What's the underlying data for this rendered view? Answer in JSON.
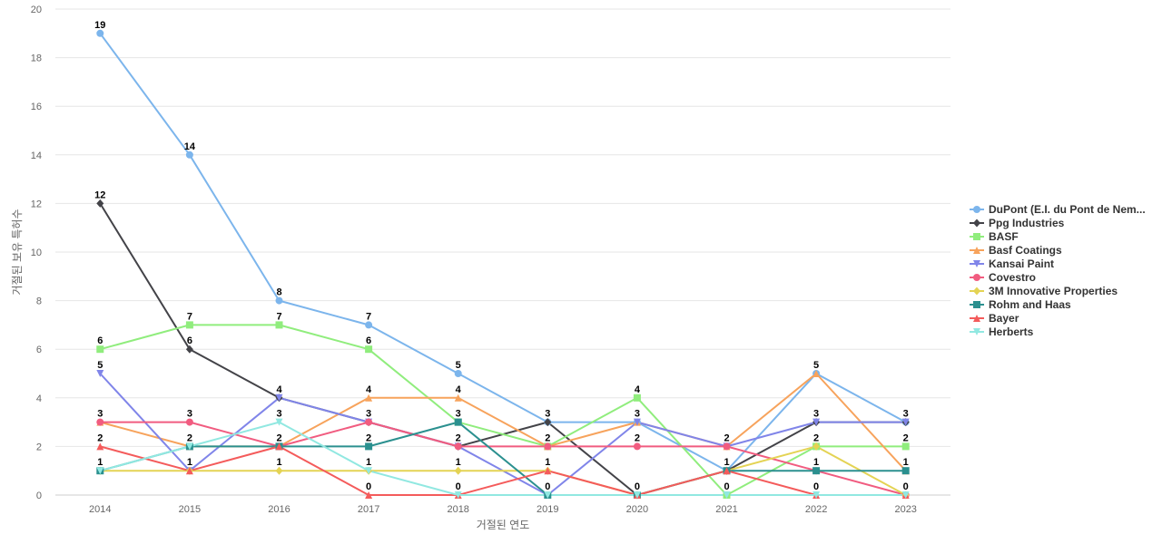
{
  "chart_data": {
    "type": "line",
    "xlabel": "거절된 연도",
    "ylabel": "거절된 보유 특허수",
    "ylim": [
      0,
      20
    ],
    "yticks": [
      0,
      2,
      4,
      6,
      8,
      10,
      12,
      14,
      16,
      18,
      20
    ],
    "grid": true,
    "legend_position": "right",
    "categories": [
      "2014",
      "2015",
      "2016",
      "2017",
      "2018",
      "2019",
      "2020",
      "2021",
      "2022",
      "2023"
    ],
    "series": [
      {
        "name": "DuPont (E.I. du Pont de Nem...",
        "color": "#7cb5ec",
        "marker": "circle",
        "values": [
          19,
          14,
          8,
          7,
          5,
          3,
          3,
          1,
          5,
          3
        ]
      },
      {
        "name": "Ppg Industries",
        "color": "#434348",
        "marker": "diamond",
        "values": [
          12,
          6,
          4,
          3,
          2,
          3,
          0,
          1,
          3,
          3
        ]
      },
      {
        "name": "BASF",
        "color": "#90ed7d",
        "marker": "square",
        "values": [
          6,
          7,
          7,
          6,
          3,
          2,
          4,
          0,
          2,
          2
        ]
      },
      {
        "name": "Basf Coatings",
        "color": "#f7a35c",
        "marker": "triangle",
        "values": [
          3,
          2,
          2,
          4,
          4,
          2,
          3,
          2,
          5,
          1
        ]
      },
      {
        "name": "Kansai Paint",
        "color": "#8085e9",
        "marker": "triangle-down",
        "values": [
          5,
          1,
          4,
          3,
          2,
          0,
          3,
          2,
          3,
          3
        ]
      },
      {
        "name": "Covestro",
        "color": "#f15c80",
        "marker": "circle",
        "values": [
          3,
          3,
          2,
          3,
          2,
          2,
          2,
          2,
          1,
          0
        ]
      },
      {
        "name": "3M Innovative Properties",
        "color": "#e4d354",
        "marker": "diamond",
        "values": [
          1,
          1,
          1,
          1,
          1,
          1,
          0,
          1,
          2,
          0
        ]
      },
      {
        "name": "Rohm and Haas",
        "color": "#2b908f",
        "marker": "square",
        "values": [
          1,
          2,
          2,
          2,
          3,
          0,
          0,
          1,
          1,
          1
        ]
      },
      {
        "name": "Bayer",
        "color": "#f45b5b",
        "marker": "triangle",
        "values": [
          2,
          1,
          2,
          0,
          0,
          1,
          0,
          1,
          0,
          0
        ]
      },
      {
        "name": "Herberts",
        "color": "#91e8e1",
        "marker": "triangle-down",
        "values": [
          1,
          2,
          3,
          1,
          0,
          0,
          0,
          0,
          0,
          0
        ]
      }
    ],
    "data_labels": [
      {
        "category": "2014",
        "values": [
          19,
          12,
          6,
          5,
          3,
          2,
          1
        ]
      },
      {
        "category": "2015",
        "values": [
          14,
          7,
          6,
          3,
          2,
          1
        ]
      },
      {
        "category": "2016",
        "values": [
          8,
          7,
          4,
          3,
          2,
          1
        ]
      },
      {
        "category": "2017",
        "values": [
          7,
          6,
          4,
          3,
          2,
          1,
          0
        ]
      },
      {
        "category": "2018",
        "values": [
          5,
          4,
          3,
          2,
          1,
          0
        ]
      },
      {
        "category": "2019",
        "values": [
          3,
          2,
          1,
          0
        ]
      },
      {
        "category": "2020",
        "values": [
          4,
          3,
          2,
          0
        ]
      },
      {
        "category": "2021",
        "values": [
          2,
          1,
          0
        ]
      },
      {
        "category": "2022",
        "values": [
          5,
          3,
          2,
          1,
          0
        ]
      },
      {
        "category": "2023",
        "values": [
          3,
          2,
          1,
          0
        ]
      }
    ]
  }
}
